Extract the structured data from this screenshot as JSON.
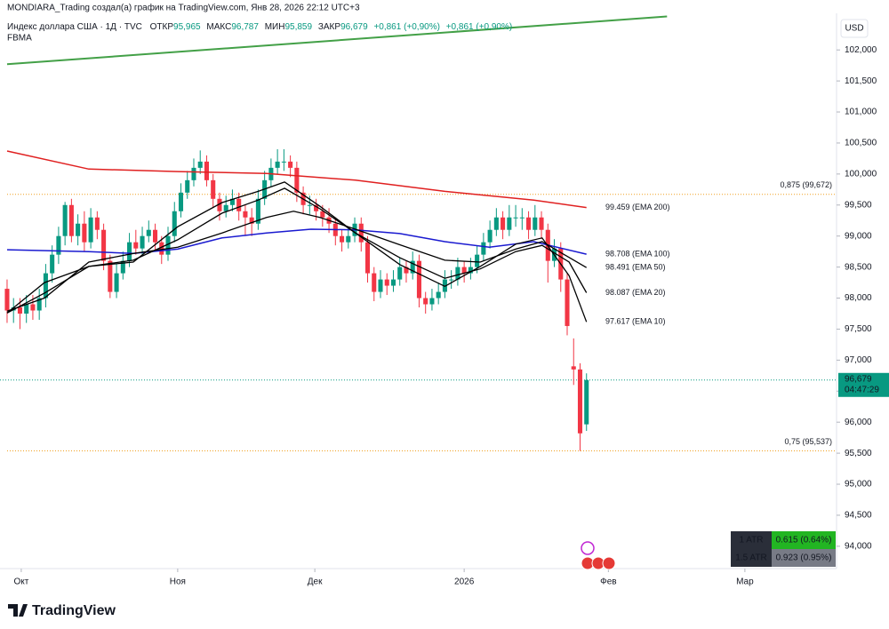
{
  "chart_data": {
    "type": "candlestick",
    "credit": "MONDIARA_Trading создал(а) график на TradingView.com, Янв 28, 2026 22:12 UTC+3",
    "symbol": "Индекс доллара США · 1Д · TVC",
    "ohlc": [
      {
        "label": "ОТКР",
        "value": "95,965"
      },
      {
        "label": "МАКС",
        "value": "96,787"
      },
      {
        "label": "МИН",
        "value": "95,859"
      },
      {
        "label": "ЗАКР",
        "value": "96,679"
      }
    ],
    "change": [
      "+0,861 (+0,90%)",
      "+0,861 (+0,90%)"
    ],
    "indicator": "FBMA",
    "currency": "USD",
    "logo": "TradingView",
    "ylim": [
      93.64,
      102.59
    ],
    "yticks": [
      {
        "value": 94,
        "label": "94,000"
      },
      {
        "value": 94.5,
        "label": "94,500"
      },
      {
        "value": 95,
        "label": "95,000"
      },
      {
        "value": 95.5,
        "label": "95,500"
      },
      {
        "value": 96,
        "label": "96,000"
      },
      {
        "value": 96.5,
        "label": "96,500"
      },
      {
        "value": 97,
        "label": "97,000"
      },
      {
        "value": 97.5,
        "label": "97,500"
      },
      {
        "value": 98,
        "label": "98,000"
      },
      {
        "value": 98.5,
        "label": "98,500"
      },
      {
        "value": 99,
        "label": "99,000"
      },
      {
        "value": 99.5,
        "label": "99,500"
      },
      {
        "value": 100,
        "label": "100,000"
      },
      {
        "value": 100.5,
        "label": "100,500"
      },
      {
        "value": 101,
        "label": "101,000"
      },
      {
        "value": 101.5,
        "label": "101,500"
      },
      {
        "value": 102,
        "label": "102,000"
      }
    ],
    "xlim": [
      -1.1,
      128.7
    ],
    "xticks": [
      {
        "value": 2.2,
        "label": "Окт"
      },
      {
        "value": 26.5,
        "label": "Ноя"
      },
      {
        "value": 47.8,
        "label": "Дек"
      },
      {
        "value": 71.0,
        "label": "2026"
      },
      {
        "value": 93.4,
        "label": "Фев"
      },
      {
        "value": 114.6,
        "label": "Мар"
      }
    ],
    "grid": false,
    "up_color": "#089981",
    "down_color": "#f23645",
    "open": [
      98.15,
      97.8,
      97.85,
      97.75,
      97.9,
      97.8,
      98.0,
      98.4,
      98.7,
      99.0,
      99.5,
      99.0,
      99.2,
      98.9,
      99.3,
      99.1,
      98.6,
      98.1,
      98.4,
      98.6,
      98.9,
      98.8,
      99.0,
      99.1,
      98.9,
      98.7,
      99.0,
      99.4,
      99.7,
      99.9,
      100.1,
      100.2,
      99.9,
      99.6,
      99.4,
      99.5,
      99.6,
      99.4,
      99.3,
      99.2,
      99.6,
      99.9,
      100.1,
      100.2,
      100.2,
      100.1,
      99.7,
      99.5,
      99.5,
      99.4,
      99.3,
      99.2,
      99.0,
      98.9,
      99.0,
      99.2,
      98.9,
      98.4,
      98.1,
      98.3,
      98.2,
      98.3,
      98.5,
      98.4,
      98.6,
      98.0,
      97.9,
      98.0,
      98.1,
      98.3,
      98.3,
      98.5,
      98.4,
      98.5,
      98.7,
      98.9,
      99.1,
      99.3,
      99.1,
      99.3,
      99.3,
      99.3,
      99.1,
      99.3,
      99.1,
      98.6,
      98.8,
      98.3,
      96.9,
      96.85,
      95.965
    ],
    "high": [
      98.3,
      98.0,
      98.0,
      98.05,
      98.05,
      98.15,
      98.55,
      98.85,
      99.15,
      99.55,
      99.6,
      99.35,
      99.4,
      99.45,
      99.4,
      99.2,
      98.7,
      98.55,
      98.75,
      99.05,
      99.1,
      99.15,
      99.25,
      99.2,
      99.0,
      99.15,
      99.55,
      99.85,
      100.05,
      100.25,
      100.38,
      100.3,
      100.0,
      99.7,
      99.65,
      99.75,
      99.7,
      99.5,
      99.45,
      99.75,
      100.05,
      100.25,
      100.4,
      100.4,
      100.3,
      100.2,
      99.8,
      99.65,
      99.6,
      99.5,
      99.45,
      99.3,
      99.1,
      99.15,
      99.3,
      99.3,
      99.0,
      98.5,
      98.45,
      98.4,
      98.45,
      98.65,
      98.6,
      98.75,
      98.7,
      98.1,
      98.15,
      98.25,
      98.45,
      98.45,
      98.65,
      98.6,
      98.65,
      98.85,
      99.05,
      99.25,
      99.45,
      99.4,
      99.5,
      99.5,
      99.45,
      99.4,
      99.5,
      99.4,
      99.2,
      98.95,
      98.9,
      98.4,
      97.35,
      96.95,
      96.787
    ],
    "low": [
      97.6,
      97.6,
      97.5,
      97.6,
      97.65,
      97.65,
      97.85,
      98.25,
      98.55,
      98.85,
      98.9,
      98.85,
      98.75,
      98.8,
      98.95,
      98.45,
      98.0,
      98.0,
      98.3,
      98.5,
      98.7,
      98.7,
      98.9,
      98.75,
      98.55,
      98.6,
      98.9,
      99.3,
      99.6,
      99.8,
      100.0,
      99.8,
      99.45,
      99.25,
      99.3,
      99.4,
      99.25,
      99.0,
      99.0,
      99.1,
      99.5,
      99.8,
      100.0,
      100.05,
      99.95,
      99.55,
      99.35,
      99.35,
      99.25,
      99.15,
      99.05,
      98.85,
      98.75,
      98.8,
      98.9,
      98.75,
      98.25,
      97.95,
      98.0,
      98.05,
      98.1,
      98.2,
      98.25,
      98.3,
      97.85,
      97.75,
      97.8,
      97.9,
      98.0,
      98.15,
      98.2,
      98.25,
      98.3,
      98.4,
      98.6,
      98.8,
      99.0,
      98.95,
      99.0,
      99.15,
      99.1,
      98.95,
      99.0,
      98.95,
      98.25,
      98.5,
      98.1,
      97.4,
      96.6,
      95.537,
      95.859
    ],
    "close": [
      97.8,
      97.85,
      97.75,
      97.9,
      97.8,
      98.0,
      98.4,
      98.7,
      99.0,
      99.5,
      99.0,
      99.2,
      98.9,
      99.3,
      99.1,
      98.6,
      98.1,
      98.4,
      98.6,
      98.9,
      98.8,
      99.0,
      99.1,
      98.9,
      98.7,
      99.0,
      99.4,
      99.7,
      99.9,
      100.1,
      100.2,
      99.9,
      99.6,
      99.4,
      99.5,
      99.6,
      99.4,
      99.3,
      99.2,
      99.6,
      99.9,
      100.1,
      100.2,
      100.2,
      100.1,
      99.7,
      99.5,
      99.5,
      99.4,
      99.3,
      99.2,
      99.0,
      98.9,
      99.0,
      99.2,
      98.9,
      98.4,
      98.1,
      98.3,
      98.2,
      98.3,
      98.5,
      98.4,
      98.6,
      98.0,
      97.9,
      98.0,
      98.1,
      98.3,
      98.3,
      98.5,
      98.4,
      98.5,
      98.7,
      98.9,
      99.1,
      99.3,
      99.1,
      99.3,
      99.3,
      99.3,
      99.1,
      99.3,
      99.1,
      98.6,
      98.8,
      98.3,
      97.55,
      96.85,
      95.82,
      96.679
    ],
    "lines": [
      {
        "color": "#43a047",
        "width": 2,
        "x": [
          0,
          102.5
        ],
        "values": [
          101.77,
          102.54
        ]
      },
      {
        "label": "99.459 (EMA 200)",
        "color": "#e02020",
        "width": 1.5,
        "x": [
          0,
          12.7,
          26.5,
          40.3,
          54.1,
          68,
          81.8,
          90
        ],
        "values": [
          100.37,
          100.08,
          100.04,
          100.01,
          99.9,
          99.72,
          99.58,
          99.459
        ]
      },
      {
        "label": "98.708 (EMA 100)",
        "color": "#1a1ad0",
        "width": 1.5,
        "x": [
          0,
          12.7,
          19.6,
          26.5,
          33.4,
          40.3,
          47.2,
          54.1,
          61,
          68,
          74.9,
          81.8,
          90
        ],
        "values": [
          98.78,
          98.75,
          98.72,
          98.79,
          98.97,
          99.05,
          99.11,
          99.1,
          99.04,
          98.91,
          98.82,
          98.91,
          98.708
        ]
      },
      {
        "label": "98.491 (EMA 50)",
        "color": "#000000",
        "width": 1.3,
        "x": [
          0,
          5.8,
          12.7,
          19.6,
          26.5,
          33.4,
          40.3,
          44.5,
          48.6,
          54.1,
          61,
          68,
          73.5,
          79,
          83.1,
          90
        ],
        "values": [
          97.79,
          98.0,
          98.58,
          98.72,
          98.82,
          99.05,
          99.3,
          99.4,
          99.3,
          99.11,
          98.86,
          98.61,
          98.58,
          98.79,
          98.91,
          98.491
        ]
      },
      {
        "label": "98.087 (EMA 20)",
        "color": "#000000",
        "width": 1.3,
        "x": [
          0,
          5.8,
          12.7,
          19.6,
          26.5,
          33.4,
          39,
          43.1,
          48.6,
          54.1,
          61,
          68,
          73.5,
          79,
          83.1,
          87.3,
          90
        ],
        "values": [
          97.76,
          98.08,
          98.51,
          98.61,
          98.94,
          99.37,
          99.58,
          99.77,
          99.44,
          99.05,
          98.65,
          98.32,
          98.47,
          98.75,
          98.85,
          98.58,
          98.087
        ]
      },
      {
        "label": "97.617 (EMA 10)",
        "color": "#000000",
        "width": 1.3,
        "x": [
          0,
          5.8,
          12.7,
          19.6,
          26.5,
          33.4,
          39,
          43.1,
          48.6,
          54.1,
          61,
          68,
          73.5,
          79,
          83.1,
          87.3,
          90
        ],
        "values": [
          97.76,
          98.25,
          98.51,
          98.58,
          99.15,
          99.54,
          99.72,
          99.87,
          99.48,
          99.05,
          98.54,
          98.19,
          98.51,
          98.87,
          98.97,
          98.36,
          97.617
        ]
      }
    ],
    "levels": [
      {
        "value": 99.672,
        "label": "0,875 (99,672)",
        "color": "#f0a020"
      },
      {
        "value": 95.537,
        "label": "0,75 (95,537)",
        "color": "#f0a020"
      }
    ],
    "last_price": {
      "value": 96.679,
      "label": "96,679",
      "countdown": "04:47:29",
      "color": "#089981"
    },
    "atr_table": [
      {
        "name": "1 ATR",
        "value": "0.615 (0.64%)",
        "color": "#22b522"
      },
      {
        "name": "1.5 ATR",
        "value": "0.923 (0.95%)",
        "color": "#787b86"
      }
    ]
  }
}
